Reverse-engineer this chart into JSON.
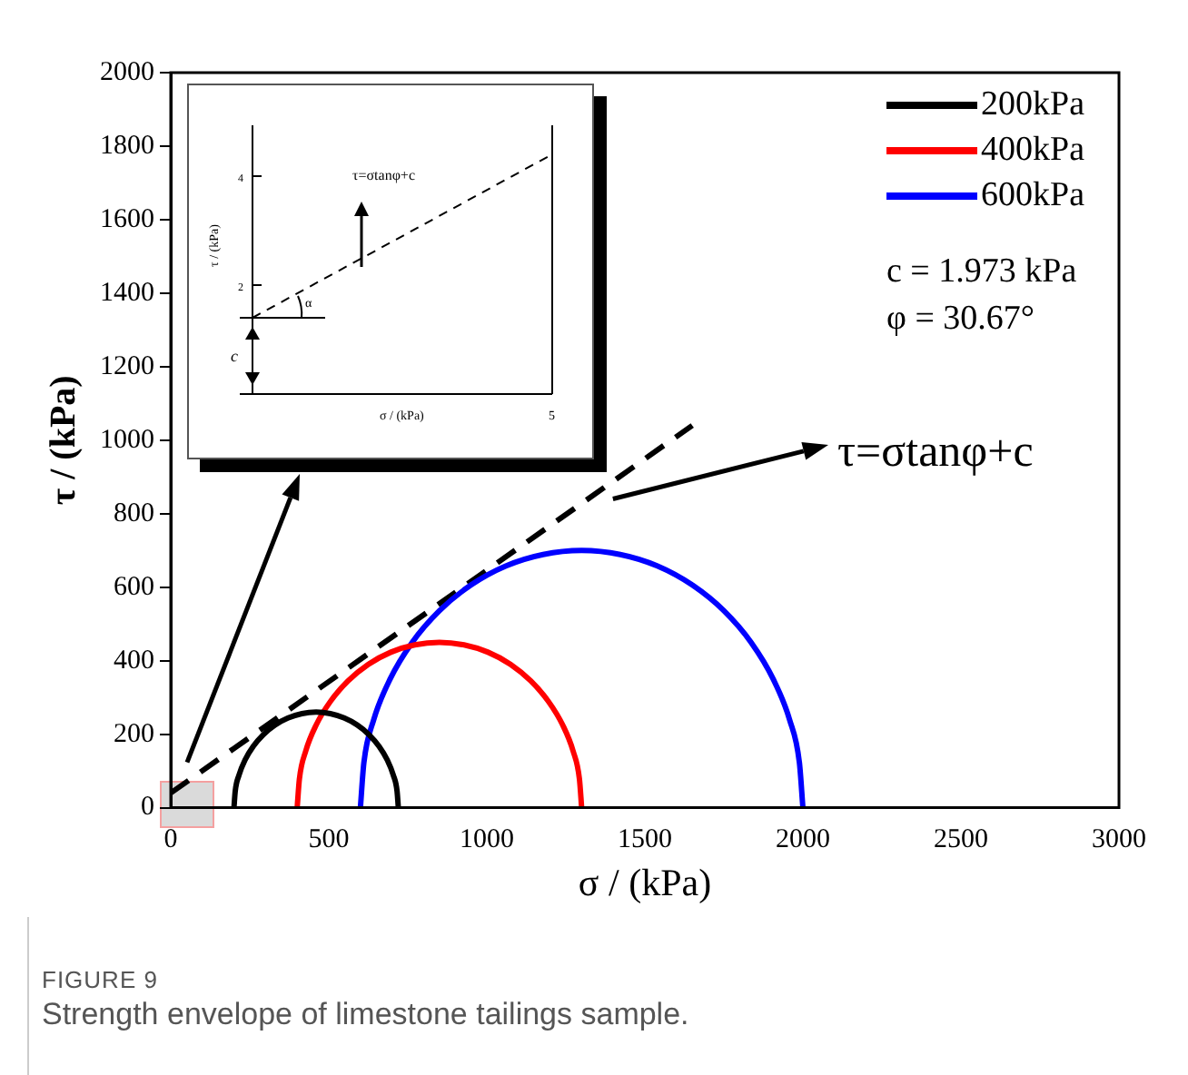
{
  "chart_data": {
    "type": "line",
    "xlabel": "σ / (kPa)",
    "ylabel": "τ / (kPa)",
    "xlim": [
      0,
      3000
    ],
    "xticks": [
      0,
      500,
      1000,
      1500,
      2000,
      2500,
      3000
    ],
    "ylim": [
      0,
      2000
    ],
    "yticks": [
      0,
      200,
      400,
      600,
      800,
      1000,
      1200,
      1400,
      1600,
      1800,
      2000
    ],
    "grid": false,
    "legend": "top right",
    "marker": "none",
    "series": [
      {
        "name": "200kPa",
        "color": "#000000",
        "x": [
          200,
          204,
          216,
          235,
          261,
          293,
          330,
          371,
          415,
          460,
          505,
          549,
          590,
          627,
          659,
          685,
          704,
          716,
          720
        ],
        "values": [
          0,
          45,
          89,
          130,
          167,
          199,
          225,
          244,
          256,
          260,
          256,
          244,
          225,
          199,
          167,
          130,
          89,
          45,
          0
        ]
      },
      {
        "name": "400kPa",
        "color": "#ff0000",
        "x": [
          400,
          407,
          427,
          460,
          505,
          561,
          625,
          696,
          772,
          850,
          928,
          1004,
          1075,
          1139,
          1195,
          1240,
          1273,
          1293,
          1300
        ],
        "values": [
          0,
          78,
          154,
          225,
          289,
          345,
          390,
          423,
          443,
          450,
          443,
          423,
          390,
          345,
          289,
          225,
          154,
          78,
          0
        ]
      },
      {
        "name": "600kPa",
        "color": "#0000ff",
        "x": [
          600,
          611,
          642,
          694,
          764,
          850,
          950,
          1061,
          1178,
          1300,
          1422,
          1539,
          1650,
          1750,
          1836,
          1906,
          1958,
          1989,
          2000
        ],
        "values": [
          0,
          122,
          239,
          350,
          450,
          536,
          606,
          658,
          689,
          700,
          689,
          658,
          606,
          536,
          450,
          350,
          239,
          122,
          0
        ]
      },
      {
        "color": "#000000",
        "line_style": "dashed",
        "x": [
          0,
          1650
        ],
        "values": [
          40,
          1040
        ]
      }
    ],
    "annotations": [
      "c = 1.973 kPa",
      "φ = 30.67°",
      "τ=σtanφ+c",
      "FIGURE 9",
      "Strength envelope of limestone tailings sample.",
      "τ=σtanφ+c",
      "τ / (kPa)",
      "σ / (kPa)",
      "c",
      "α",
      "2",
      "4",
      "5"
    ]
  }
}
